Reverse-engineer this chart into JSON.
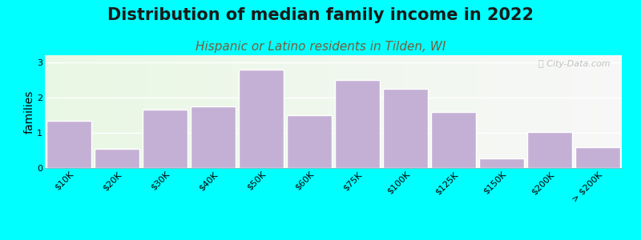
{
  "title": "Distribution of median family income in 2022",
  "subtitle": "Hispanic or Latino residents in Tilden, WI",
  "ylabel": "families",
  "background_color": "#00FFFF",
  "bar_color": "#c5b0d5",
  "bar_edge_color": "#ffffff",
  "categories": [
    "$10K",
    "$20K",
    "$30K",
    "$40K",
    "$50K",
    "$60K",
    "$75K",
    "$100K",
    "$125K",
    "$150K",
    "$200K",
    "> $200K"
  ],
  "values": [
    1.35,
    0.55,
    1.65,
    1.75,
    2.8,
    1.5,
    2.5,
    2.25,
    1.6,
    0.27,
    1.02,
    0.58
  ],
  "ylim": [
    0,
    3.2
  ],
  "yticks": [
    0,
    1,
    2,
    3
  ],
  "title_fontsize": 15,
  "subtitle_fontsize": 11,
  "subtitle_color": "#7a5c3a",
  "ylabel_fontsize": 10,
  "tick_fontsize": 8,
  "watermark": "ⓘ City-Data.com"
}
